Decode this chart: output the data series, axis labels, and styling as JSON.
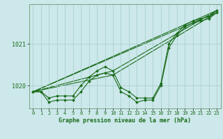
{
  "background_color": "#cce8ea",
  "grid_color": "#aacfcf",
  "line_color": "#1a6b1a",
  "title": "Graphe pression niveau de la mer (hPa)",
  "ylabel_ticks": [
    1020,
    1021
  ],
  "xlim": [
    -0.5,
    23.5
  ],
  "ylim": [
    1019.45,
    1021.95
  ],
  "xticks": [
    0,
    1,
    2,
    3,
    4,
    5,
    6,
    7,
    8,
    9,
    10,
    11,
    12,
    13,
    14,
    15,
    16,
    17,
    18,
    19,
    20,
    21,
    22,
    23
  ],
  "xtick_labels": [
    "0",
    "1",
    "2",
    "3",
    "4",
    "5",
    "6",
    "7",
    "8",
    "9",
    "10",
    "11",
    "12",
    "13",
    "14",
    "15",
    "16",
    "17",
    "18",
    "19",
    "20",
    "21",
    "22",
    "23"
  ],
  "series_main": [
    [
      1019.85,
      1019.85,
      1019.6,
      1019.65,
      1019.65,
      1019.65,
      1019.85,
      1020.1,
      1020.25,
      1020.3,
      1020.25,
      1019.85,
      1019.75,
      1019.6,
      1019.65,
      1019.65,
      1020.0,
      1020.9,
      1021.2,
      1021.4,
      1021.5,
      1021.55,
      1021.6,
      1021.75
    ],
    [
      1019.85,
      1019.85,
      1019.7,
      1019.75,
      1019.75,
      1019.75,
      1020.0,
      1020.2,
      1020.35,
      1020.45,
      1020.35,
      1019.95,
      1019.85,
      1019.7,
      1019.7,
      1019.7,
      1020.05,
      1021.0,
      1021.25,
      1021.45,
      1021.55,
      1021.6,
      1021.65,
      1021.8
    ]
  ],
  "series_trend": [
    [
      [
        0,
        23
      ],
      [
        1019.85,
        1021.75
      ]
    ],
    [
      [
        0,
        23
      ],
      [
        1019.85,
        1021.8
      ]
    ],
    [
      [
        0,
        10,
        23
      ],
      [
        1019.85,
        1020.25,
        1021.75
      ]
    ],
    [
      [
        0,
        10,
        23
      ],
      [
        1019.85,
        1020.35,
        1021.8
      ]
    ]
  ],
  "figsize": [
    3.2,
    2.0
  ],
  "dpi": 100
}
